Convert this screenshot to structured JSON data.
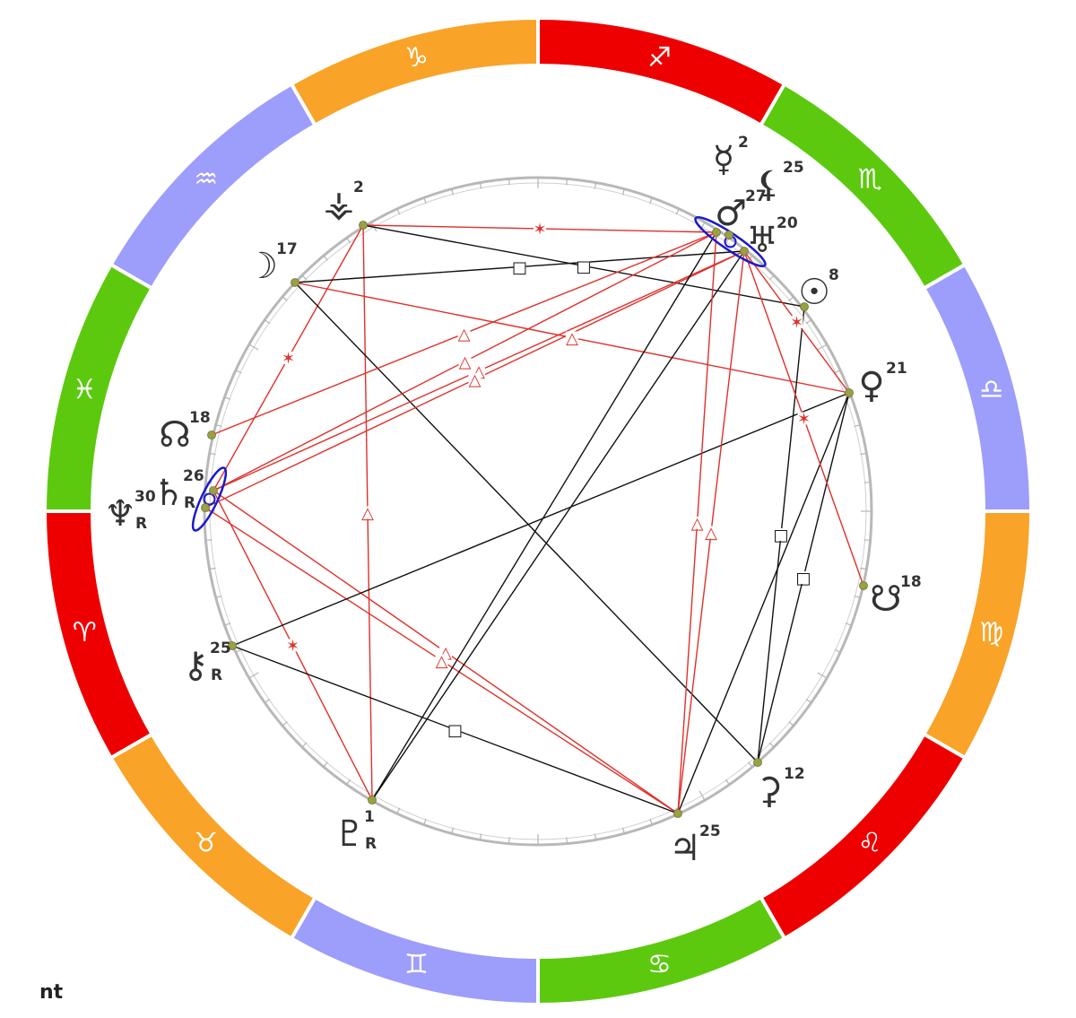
{
  "colors": {
    "fire": "#ee0000",
    "earth": "#f9a328",
    "air": "#9d9dfb",
    "water": "#5cc90e",
    "conjunction": "#1a1acc",
    "harmonic": "#e0302a",
    "tense": "#111111",
    "point": "#9aa044"
  },
  "zodiac": [
    {
      "glyph": "♐",
      "element": "fire"
    },
    {
      "glyph": "♏",
      "element": "water"
    },
    {
      "glyph": "♎",
      "element": "air"
    },
    {
      "glyph": "♍",
      "element": "earth"
    },
    {
      "glyph": "♌",
      "element": "fire"
    },
    {
      "glyph": "♋",
      "element": "water"
    },
    {
      "glyph": "♊",
      "element": "air"
    },
    {
      "glyph": "♉",
      "element": "earth"
    },
    {
      "glyph": "♈",
      "element": "fire"
    },
    {
      "glyph": "♓",
      "element": "water"
    },
    {
      "glyph": "♒",
      "element": "air"
    },
    {
      "glyph": "♑",
      "element": "earth"
    }
  ],
  "planets": [
    {
      "id": "mercury",
      "glyph": "☿",
      "degree": "2",
      "retro": "",
      "icon": "mercury-icon"
    },
    {
      "id": "lilith",
      "glyph": "⚸",
      "degree": "25",
      "retro": "",
      "icon": "lilith-icon"
    },
    {
      "id": "mars",
      "glyph": "♂",
      "degree": "27",
      "retro": "",
      "icon": "mars-icon"
    },
    {
      "id": "uranus",
      "glyph": "♅",
      "degree": "20",
      "retro": "",
      "icon": "uranus-icon"
    },
    {
      "id": "sun",
      "glyph": "☉",
      "degree": "8",
      "retro": "",
      "icon": "sun-icon"
    },
    {
      "id": "venus",
      "glyph": "♀",
      "degree": "21",
      "retro": "",
      "icon": "venus-icon"
    },
    {
      "id": "south-node",
      "glyph": "☋",
      "degree": "18",
      "retro": "",
      "icon": "south-node-icon"
    },
    {
      "id": "ceres",
      "glyph": "⚳",
      "degree": "12",
      "retro": "",
      "icon": "ceres-icon"
    },
    {
      "id": "jupiter",
      "glyph": "♃",
      "degree": "25",
      "retro": "",
      "icon": "jupiter-icon"
    },
    {
      "id": "pluto",
      "glyph": "♇",
      "degree": "1",
      "retro": "R",
      "icon": "pluto-icon"
    },
    {
      "id": "chiron",
      "glyph": "⚷",
      "degree": "25",
      "retro": "R",
      "icon": "chiron-icon"
    },
    {
      "id": "neptune",
      "glyph": "♆",
      "degree": "30",
      "retro": "R",
      "icon": "neptune-icon"
    },
    {
      "id": "saturn",
      "glyph": "♄",
      "degree": "26",
      "retro": "R",
      "icon": "saturn-icon"
    },
    {
      "id": "north-node",
      "glyph": "☊",
      "degree": "18",
      "retro": "",
      "icon": "north-node-icon"
    },
    {
      "id": "moon",
      "glyph": "☽",
      "degree": "17",
      "retro": "",
      "icon": "moon-icon"
    },
    {
      "id": "vesta",
      "glyph": "⚶",
      "degree": "2",
      "retro": "",
      "icon": "vesta-icon"
    }
  ],
  "aspects": [
    {
      "from": "vesta",
      "to": "mars",
      "type": "sextile",
      "symbol": "✶"
    },
    {
      "from": "vesta",
      "to": "saturn",
      "type": "sextile",
      "symbol": "✶"
    },
    {
      "from": "vesta",
      "to": "pluto",
      "type": "trine",
      "symbol": "△"
    },
    {
      "from": "vesta",
      "to": "sun",
      "type": "square",
      "symbol": "□"
    },
    {
      "from": "moon",
      "to": "uranus",
      "type": "square",
      "symbol": "□"
    },
    {
      "from": "moon",
      "to": "venus",
      "type": "trine",
      "symbol": "△"
    },
    {
      "from": "moon",
      "to": "ceres",
      "type": "opposition",
      "symbol": ""
    },
    {
      "from": "north-node",
      "to": "mars",
      "type": "trine",
      "symbol": "△"
    },
    {
      "from": "saturn",
      "to": "mars",
      "type": "trine",
      "symbol": "△"
    },
    {
      "from": "saturn",
      "to": "uranus",
      "type": "trine",
      "symbol": "△"
    },
    {
      "from": "neptune",
      "to": "uranus",
      "type": "trine",
      "symbol": "△"
    },
    {
      "from": "saturn",
      "to": "jupiter",
      "type": "trine",
      "symbol": "△"
    },
    {
      "from": "neptune",
      "to": "jupiter",
      "type": "trine",
      "symbol": "△"
    },
    {
      "from": "saturn",
      "to": "pluto",
      "type": "sextile",
      "symbol": "✶"
    },
    {
      "from": "chiron",
      "to": "venus",
      "type": "opposition",
      "symbol": ""
    },
    {
      "from": "chiron",
      "to": "jupiter",
      "type": "square",
      "symbol": "□"
    },
    {
      "from": "pluto",
      "to": "mars",
      "type": "opposition",
      "symbol": ""
    },
    {
      "from": "pluto",
      "to": "uranus",
      "type": "opposition",
      "symbol": ""
    },
    {
      "from": "jupiter",
      "to": "mars",
      "type": "trine",
      "symbol": "△"
    },
    {
      "from": "jupiter",
      "to": "uranus",
      "type": "trine",
      "symbol": "△"
    },
    {
      "from": "jupiter",
      "to": "venus",
      "type": "opposition",
      "symbol": ""
    },
    {
      "from": "ceres",
      "to": "sun",
      "type": "square",
      "symbol": "□"
    },
    {
      "from": "ceres",
      "to": "venus",
      "type": "square",
      "symbol": "□"
    },
    {
      "from": "uranus",
      "to": "south-node",
      "type": "sextile",
      "symbol": "✶"
    },
    {
      "from": "uranus",
      "to": "venus",
      "type": "sextile",
      "symbol": "✶"
    }
  ],
  "conjunctions": [
    {
      "members": [
        "mars",
        "uranus"
      ]
    },
    {
      "members": [
        "saturn",
        "neptune"
      ]
    }
  ],
  "footer": {
    "label": "nt"
  }
}
